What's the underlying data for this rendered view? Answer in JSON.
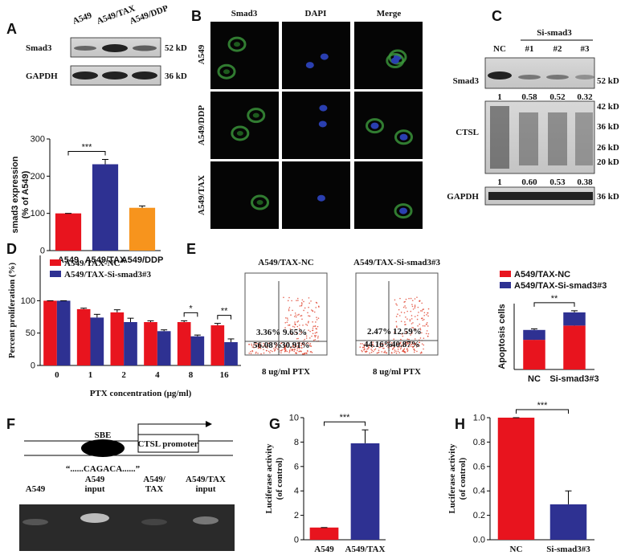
{
  "panels": {
    "A": {
      "label": "A",
      "lanes": [
        "A549",
        "A549/TAX",
        "A549/DDP"
      ],
      "bands": [
        "Smad3",
        "GAPDH"
      ],
      "sizes": [
        "52 kD",
        "36 kD"
      ]
    },
    "B": {
      "label": "B",
      "columns": [
        "Smad3",
        "DAPI",
        "Merge"
      ],
      "rows": [
        "A549",
        "A549/DDP",
        "A549/TAX"
      ]
    },
    "C": {
      "label": "C",
      "group": "Si-smad3",
      "lanes": [
        "NC",
        "#1",
        "#2",
        "#3"
      ],
      "bands": [
        "Smad3",
        "CTSL",
        "GAPDH"
      ],
      "sizes": [
        "52 kD",
        "42 kD",
        "36 kD",
        "26 kD",
        "20 kD",
        "36 kD"
      ],
      "smad3_ratios": [
        "1",
        "0.58",
        "0.52",
        "0.32"
      ],
      "ctsl_ratios": [
        "1",
        "0.60",
        "0.53",
        "0.38"
      ]
    },
    "D": {
      "label": "D"
    },
    "E": {
      "label": "E",
      "plots": [
        {
          "title": "A549/TAX-NC",
          "quadrants": [
            "3.36%",
            "9.65%",
            "56.08%",
            "30.91%"
          ],
          "caption": "8 ug/ml PTX"
        },
        {
          "title": "A549/TAX-Si-smad3#3",
          "quadrants": [
            "2.47%",
            "12.59%",
            "44.16%",
            "40.87%"
          ],
          "caption": "8 ug/ml PTX"
        }
      ]
    },
    "F": {
      "label": "F",
      "site": "SBE",
      "promoter": "CTSL promoter",
      "sequence": "“......CAGACA......”",
      "lanes": [
        [
          "A549"
        ],
        [
          "A549",
          "input"
        ],
        [
          "A549/",
          "TAX"
        ],
        [
          "A549/TAX",
          "input"
        ]
      ]
    },
    "G": {
      "label": "G"
    },
    "H": {
      "label": "H"
    }
  },
  "chart_data": [
    {
      "type": "bar",
      "ylabel": [
        "smad3 expression",
        "(% of A549)"
      ],
      "categories": [
        "A549",
        "A549/TAX",
        "A549/DDP"
      ],
      "values": [
        100,
        232,
        115
      ],
      "errors": [
        0,
        13,
        5
      ],
      "colors": [
        "#e8141e",
        "#2e3192",
        "#f7941d"
      ],
      "ylim": [
        0,
        300
      ],
      "yticks": [
        0,
        100,
        200,
        300
      ],
      "significance": "***"
    },
    {
      "type": "bar",
      "xlabel": "PTX concentration (μg/ml)",
      "ylabel": [
        "Percent proliferation (%)"
      ],
      "categories": [
        "0",
        "1",
        "2",
        "4",
        "8",
        "16"
      ],
      "series": [
        {
          "name": "A549/TAX-NC",
          "color": "#e8141e",
          "values": [
            100,
            87,
            82,
            67,
            67,
            62
          ],
          "errors": [
            0,
            1.5,
            4,
            2,
            2,
            3
          ]
        },
        {
          "name": "A549/TAX-Si-smad3#3",
          "color": "#2e3192",
          "values": [
            100,
            74,
            67,
            53,
            45,
            36
          ],
          "errors": [
            0,
            5,
            6,
            2,
            2,
            5
          ]
        }
      ],
      "ylim": [
        0,
        170
      ],
      "yticks": [
        0,
        50,
        100
      ],
      "significance": [
        null,
        null,
        null,
        null,
        "*",
        "**"
      ]
    },
    {
      "type": "bar",
      "stacked": true,
      "ylabel": [
        "Apoptosis cells"
      ],
      "categories": [
        "NC",
        "Si-smad3#3"
      ],
      "series": [
        {
          "name": "A549/TAX-NC",
          "color": "#e8141e",
          "values": [
            27,
            40
          ],
          "errors": [
            2,
            1.5
          ]
        },
        {
          "name": "A549/TAX-Si-smad3#3",
          "color": "#2e3192",
          "values": [
            9,
            12
          ],
          "errors": [
            1,
            1.5
          ]
        }
      ],
      "ylim": [
        0,
        60
      ],
      "significance": "**"
    },
    {
      "type": "bar",
      "ylabel": [
        "Luciferase activity",
        "(of control)"
      ],
      "categories": [
        "A549",
        "A549/TAX"
      ],
      "values": [
        1,
        7.9
      ],
      "errors": [
        0,
        1.1
      ],
      "colors": [
        "#e8141e",
        "#2e3192"
      ],
      "ylim": [
        0,
        10
      ],
      "yticks": [
        0,
        2,
        4,
        6,
        8,
        10
      ],
      "significance": "***"
    },
    {
      "type": "bar",
      "ylabel": [
        "Luciferase activity",
        "(of control)"
      ],
      "categories": [
        "NC",
        "Si-smad3#3"
      ],
      "values": [
        1,
        0.29
      ],
      "errors": [
        0,
        0.11
      ],
      "colors": [
        "#e8141e",
        "#2e3192"
      ],
      "ylim": [
        0,
        1
      ],
      "yticks": [
        {
          "value": 0,
          "label": "0.0"
        },
        0.2,
        0.4,
        0.6,
        0.8,
        {
          "value": 1,
          "label": "1.0"
        }
      ],
      "significance": "***"
    }
  ]
}
